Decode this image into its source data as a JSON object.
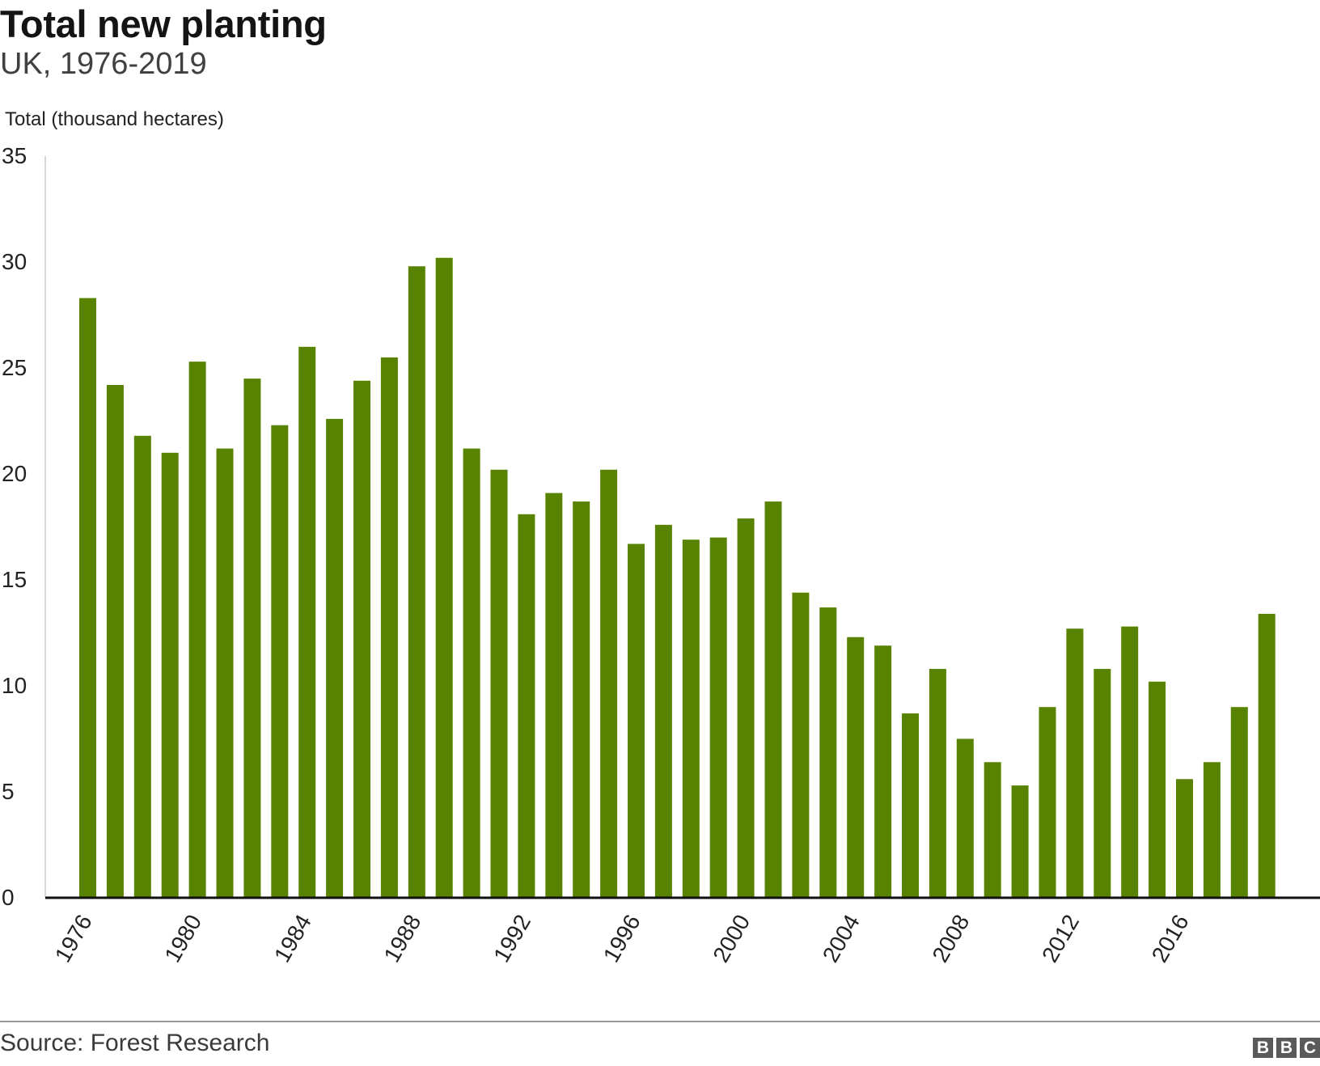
{
  "header": {
    "title": "Total new planting",
    "subtitle": "UK, 1976-2019"
  },
  "footer": {
    "source": "Source: Forest Research",
    "logo_letters": [
      "B",
      "B",
      "C"
    ]
  },
  "colors": {
    "bar": "#588300",
    "axis": "#111111",
    "text": "#222222"
  },
  "chart_data": {
    "type": "bar",
    "title": "Total new planting",
    "subtitle": "UK, 1976-2019",
    "ylabel": "Total (thousand hectares)",
    "xlabel": "",
    "ylim": [
      0,
      35
    ],
    "yticks": [
      0,
      5,
      10,
      15,
      20,
      25,
      30,
      35
    ],
    "xtick_labels": [
      "1976",
      "1980",
      "1984",
      "1988",
      "1992",
      "1996",
      "2000",
      "2004",
      "2008",
      "2012",
      "2016"
    ],
    "grid": false,
    "categories": [
      "1976",
      "1977",
      "1978",
      "1979",
      "1980",
      "1981",
      "1982",
      "1983",
      "1984",
      "1985",
      "1986",
      "1987",
      "1988",
      "1989",
      "1990",
      "1991",
      "1992",
      "1993",
      "1994",
      "1995",
      "1996",
      "1997",
      "1998",
      "1999",
      "2000",
      "2001",
      "2002",
      "2003",
      "2004",
      "2005",
      "2006",
      "2007",
      "2008",
      "2009",
      "2010",
      "2011",
      "2012",
      "2013",
      "2014",
      "2015",
      "2016",
      "2017",
      "2018",
      "2019"
    ],
    "values": [
      28.3,
      24.2,
      21.8,
      21.0,
      25.3,
      21.2,
      24.5,
      22.3,
      26.0,
      22.6,
      24.4,
      25.5,
      29.8,
      30.2,
      21.2,
      20.2,
      18.1,
      19.1,
      18.7,
      20.2,
      16.7,
      17.6,
      16.9,
      17.0,
      17.9,
      18.7,
      14.4,
      13.7,
      12.3,
      11.9,
      8.7,
      10.8,
      7.5,
      6.4,
      5.3,
      9.0,
      12.7,
      10.8,
      12.8,
      10.2,
      5.6,
      6.4,
      9.0,
      13.4
    ],
    "series": [
      {
        "values": [
          28.3,
          24.2,
          21.8,
          21.0,
          25.3,
          21.2,
          24.5,
          22.3,
          26.0,
          22.6,
          24.4,
          25.5,
          29.8,
          30.2,
          21.2,
          20.2,
          18.1,
          19.1,
          18.7,
          20.2,
          16.7,
          17.6,
          16.9,
          17.0,
          17.9,
          18.7,
          14.4,
          13.7,
          12.3,
          11.9,
          8.7,
          10.8,
          7.5,
          6.4,
          5.3,
          9.0,
          12.7,
          10.8,
          12.8,
          10.2,
          5.6,
          6.4,
          9.0,
          13.4
        ]
      }
    ]
  }
}
